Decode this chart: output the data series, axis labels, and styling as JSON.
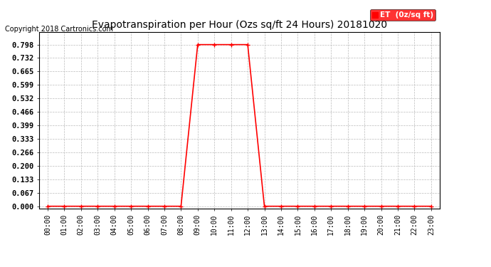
{
  "title": "Evapotranspiration per Hour (Ozs sq/ft 24 Hours) 20181020",
  "copyright": "Copyright 2018 Cartronics.com",
  "legend_label": "ET  (0z/sq ft)",
  "line_color": "#ff0000",
  "background_color": "#ffffff",
  "grid_color": "#bbbbbb",
  "hours": [
    "00:00",
    "01:00",
    "02:00",
    "03:00",
    "04:00",
    "05:00",
    "06:00",
    "07:00",
    "08:00",
    "09:00",
    "10:00",
    "11:00",
    "12:00",
    "13:00",
    "14:00",
    "15:00",
    "16:00",
    "17:00",
    "18:00",
    "19:00",
    "20:00",
    "21:00",
    "22:00",
    "23:00"
  ],
  "values": [
    0.0,
    0.0,
    0.0,
    0.0,
    0.0,
    0.0,
    0.0,
    0.0,
    0.0,
    0.798,
    0.798,
    0.798,
    0.798,
    0.0,
    0.0,
    0.0,
    0.0,
    0.0,
    0.0,
    0.0,
    0.0,
    0.0,
    0.0,
    0.0
  ],
  "yticks": [
    0.0,
    0.067,
    0.133,
    0.2,
    0.266,
    0.333,
    0.399,
    0.466,
    0.532,
    0.599,
    0.665,
    0.732,
    0.798
  ],
  "ylim": [
    -0.01,
    0.86
  ],
  "marker": "+",
  "marker_size": 5,
  "line_width": 1.2,
  "title_fontsize": 10,
  "tick_fontsize": 7,
  "copyright_fontsize": 7,
  "legend_fontsize": 7.5
}
